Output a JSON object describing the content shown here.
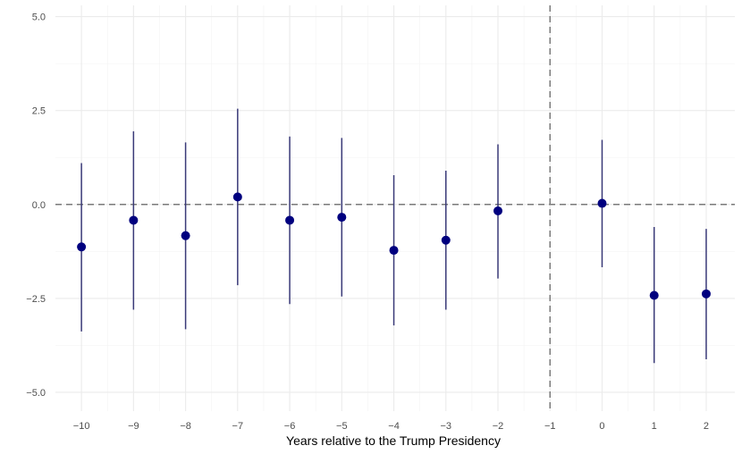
{
  "chart_data": {
    "type": "scatter",
    "title": "",
    "xlabel": "Years relative to the Trump Presidency",
    "ylabel": "",
    "xlim": [
      -10.5,
      2.55
    ],
    "ylim": [
      -5.5,
      5.3
    ],
    "x_ticks": [
      -10,
      -9,
      -8,
      -7,
      -6,
      -5,
      -4,
      -3,
      -2,
      -1,
      0,
      1,
      2
    ],
    "y_ticks": [
      -5.0,
      -2.5,
      0.0,
      2.5,
      5.0
    ],
    "y_tick_labels": [
      "−5.0",
      "−2.5",
      "0.0",
      "2.5",
      "5.0"
    ],
    "x_tick_labels": [
      "−10",
      "−9",
      "−8",
      "−7",
      "−6",
      "−5",
      "−4",
      "−3",
      "−2",
      "−1",
      "0",
      "1",
      "2"
    ],
    "grid": true,
    "reference_lines": {
      "horizontal": 0,
      "vertical": -1
    },
    "point_color": "#00007f",
    "errorbar_color": "#3a3a78",
    "points": [
      {
        "x": -10,
        "y": -1.13,
        "lower": -3.38,
        "upper": 1.1
      },
      {
        "x": -9,
        "y": -0.42,
        "lower": -2.8,
        "upper": 1.95
      },
      {
        "x": -8,
        "y": -0.83,
        "lower": -3.32,
        "upper": 1.65
      },
      {
        "x": -7,
        "y": 0.2,
        "lower": -2.15,
        "upper": 2.55
      },
      {
        "x": -6,
        "y": -0.42,
        "lower": -2.65,
        "upper": 1.81
      },
      {
        "x": -5,
        "y": -0.34,
        "lower": -2.45,
        "upper": 1.77
      },
      {
        "x": -4,
        "y": -1.22,
        "lower": -3.22,
        "upper": 0.78
      },
      {
        "x": -3,
        "y": -0.95,
        "lower": -2.8,
        "upper": 0.9
      },
      {
        "x": -2,
        "y": -0.17,
        "lower": -1.97,
        "upper": 1.6
      },
      {
        "x": 0,
        "y": 0.03,
        "lower": -1.67,
        "upper": 1.72
      },
      {
        "x": 1,
        "y": -2.42,
        "lower": -4.22,
        "upper": -0.6
      },
      {
        "x": 2,
        "y": -2.38,
        "lower": -4.12,
        "upper": -0.65
      }
    ]
  }
}
